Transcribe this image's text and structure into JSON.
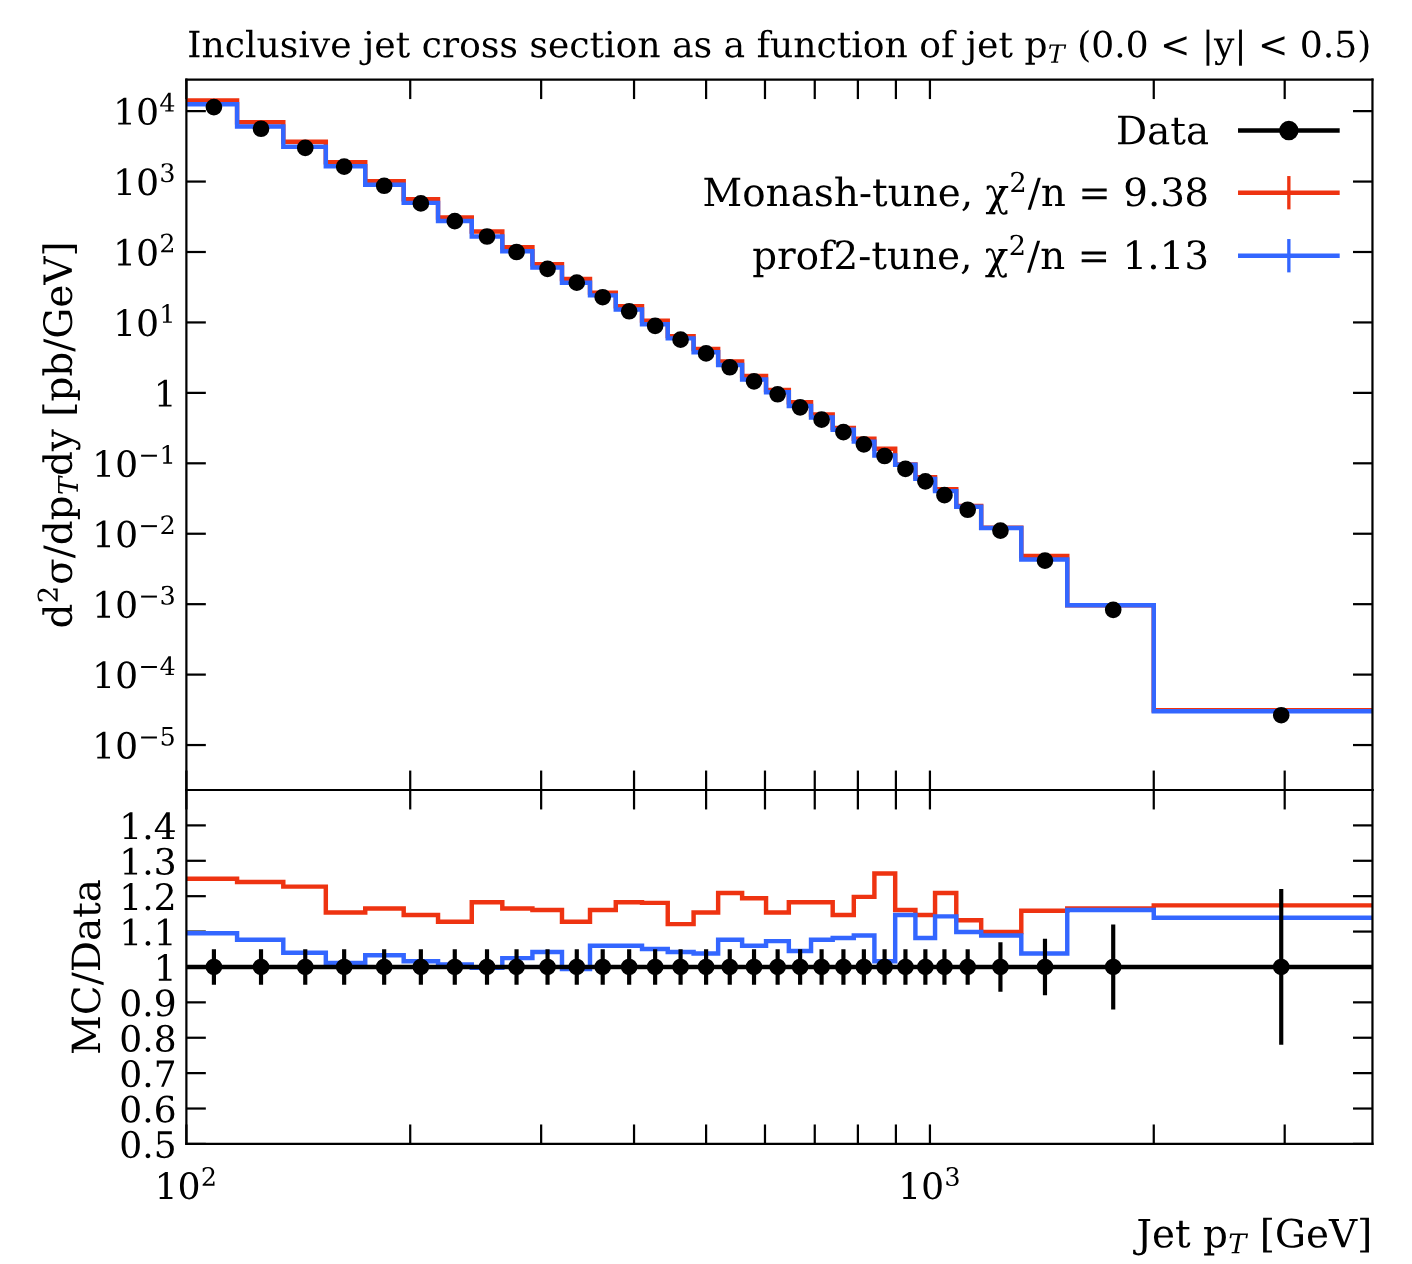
{
  "chart_data": [
    {
      "type": "histogram",
      "title": "Inclusive jet cross section as a function of jet p$_{T}$ (0.0 < |y| < 0.5)",
      "ylabel": "d$^{2}$σ/dp$_{T}$dy [pb/GeV]",
      "log": "xy",
      "tick_labels": "y",
      "legend": "top right",
      "bins": [
        100,
        117,
        135,
        154,
        174,
        196,
        218,
        242,
        266,
        292,
        320,
        349,
        378,
        410,
        444,
        481,
        519,
        559,
        602,
        646,
        692,
        740,
        790,
        842,
        898,
        956,
        1016,
        1085,
        1172,
        1327,
        1530,
        2000,
        3937
      ],
      "xlim": [
        100,
        3937
      ],
      "xticks": [
        {
          "value": 100,
          "label": null
        },
        {
          "value": 200,
          "label": null
        },
        {
          "value": 300,
          "label": null
        },
        {
          "value": 400,
          "label": null
        },
        {
          "value": 500,
          "label": null
        },
        {
          "value": 600,
          "label": null
        },
        {
          "value": 700,
          "label": null
        },
        {
          "value": 800,
          "label": null
        },
        {
          "value": 900,
          "label": null
        },
        {
          "value": 1000,
          "label": null
        },
        {
          "value": 2000,
          "label": null
        },
        {
          "value": 3000,
          "label": null
        }
      ],
      "ylim": [
        2.3e-06,
        28000
      ],
      "yticks": [
        {
          "value": 1e-05,
          "label": "10$^{−5}$"
        },
        {
          "value": 0.0001,
          "label": "10$^{−4}$"
        },
        {
          "value": 0.001,
          "label": "10$^{−3}$"
        },
        {
          "value": 0.01,
          "label": "10$^{−2}$"
        },
        {
          "value": 0.1,
          "label": "10$^{−1}$"
        },
        1,
        {
          "value": 10,
          "label": "10$^{1}$"
        },
        {
          "value": 100,
          "label": "10$^{2}$"
        },
        {
          "value": 1000,
          "label": "10$^{3}$"
        },
        {
          "value": 10000,
          "label": "10$^{4}$"
        }
      ],
      "series": [
        {
          "name": "Data",
          "type": "scatter",
          "marker": "circle",
          "color": "#000000",
          "x": [
            108.9,
            126,
            144.5,
            163,
            184.5,
            206.7,
            229.6,
            253.7,
            278,
            306,
            335,
            363,
            394,
            427,
            462,
            500,
            538,
            580,
            624,
            669,
            715,
            765,
            815,
            869,
            927,
            986,
            1046,
            1124,
            1244,
            1428,
            1764,
            2968
          ],
          "values": [
            11400,
            5620,
            3000,
            1630,
            871,
            490,
            274,
            166,
            100,
            57.7,
            36.7,
            22.8,
            14.4,
            8.95,
            5.7,
            3.63,
            2.31,
            1.46,
            0.955,
            0.624,
            0.416,
            0.277,
            0.186,
            0.127,
            0.0832,
            0.0555,
            0.0353,
            0.0219,
            0.0111,
            0.00416,
            0.00083,
            2.65e-05
          ]
        },
        {
          "name": "Monash-tune, χ$^{2}$/n = 9.38",
          "color": "#ee3311",
          "values": [
            14200,
            6970,
            3680,
            1880,
            1015,
            562,
            309,
            196,
            116.5,
            67.0,
            41.4,
            26.5,
            17.0,
            10.6,
            6.39,
            4.19,
            2.79,
            1.74,
            1.1,
            0.738,
            0.492,
            0.318,
            0.223,
            0.161,
            0.0966,
            0.0637,
            0.0427,
            0.0248,
            0.0122,
            0.00482,
            0.000967,
            3.11e-05
          ]
        },
        {
          "name": "prof2-tune, χ$^{2}$/n = 1.13",
          "color": "#3366ff",
          "values": [
            12500,
            6050,
            3120,
            1650,
            900,
            498,
            276,
            166,
            102.5,
            60.1,
            36.5,
            24.2,
            15.3,
            9.41,
            5.94,
            3.77,
            2.49,
            1.55,
            1.02,
            0.652,
            0.448,
            0.3,
            0.203,
            0.129,
            0.0954,
            0.0601,
            0.0403,
            0.0241,
            0.0121,
            0.00432,
            0.000964,
            3.02e-05
          ]
        }
      ]
    },
    {
      "type": "histogram",
      "xlabel": "Jet p$_{T}$ [GeV]",
      "ylabel": "MC/Data",
      "log": "x",
      "bins": [
        100,
        117,
        135,
        154,
        174,
        196,
        218,
        242,
        266,
        292,
        320,
        349,
        378,
        410,
        444,
        481,
        519,
        559,
        602,
        646,
        692,
        740,
        790,
        842,
        898,
        956,
        1016,
        1085,
        1172,
        1327,
        1530,
        2000,
        3937
      ],
      "xlim": [
        100,
        3937
      ],
      "xticks": [
        {
          "value": 100,
          "label": "10$^{2}$"
        },
        {
          "value": 200,
          "label": null
        },
        {
          "value": 300,
          "label": null
        },
        {
          "value": 400,
          "label": null
        },
        {
          "value": 500,
          "label": null
        },
        {
          "value": 600,
          "label": null
        },
        {
          "value": 700,
          "label": null
        },
        {
          "value": 800,
          "label": null
        },
        {
          "value": 900,
          "label": null
        },
        {
          "value": 1000,
          "label": "10$^{3}$"
        },
        {
          "value": 2000,
          "label": null
        },
        {
          "value": 3000,
          "label": null
        }
      ],
      "ylim": [
        0.5,
        1.5
      ],
      "yticks": [
        0.5,
        0.6,
        0.7,
        0.8,
        0.9,
        1,
        1.1,
        1.2,
        1.3,
        1.4
      ],
      "ref_lines": [
        {
          "axis": "y",
          "value": 1,
          "color": "#000000"
        }
      ],
      "series": [
        {
          "type": "scatter",
          "marker": "circle",
          "color": "#000000",
          "x": [
            108.9,
            126,
            144.5,
            163,
            184.5,
            206.7,
            229.6,
            253.7,
            278,
            306,
            335,
            363,
            394,
            427,
            462,
            500,
            538,
            580,
            624,
            669,
            715,
            765,
            815,
            869,
            927,
            986,
            1046,
            1124,
            1244,
            1428,
            1764,
            2968
          ],
          "values": [
            1,
            1,
            1,
            1,
            1,
            1,
            1,
            1,
            1,
            1,
            1,
            1,
            1,
            1,
            1,
            1,
            1,
            1,
            1,
            1,
            1,
            1,
            1,
            1,
            1,
            1,
            1,
            1,
            1,
            1,
            1,
            1
          ],
          "errors": [
            0.05,
            0.05,
            0.05,
            0.05,
            0.05,
            0.05,
            0.05,
            0.05,
            0.05,
            0.05,
            0.05,
            0.05,
            0.05,
            0.05,
            0.05,
            0.05,
            0.05,
            0.05,
            0.05,
            0.05,
            0.05,
            0.05,
            0.05,
            0.05,
            0.05,
            0.05,
            0.05,
            0.05,
            0.07,
            0.08,
            0.12,
            0.22
          ]
        },
        {
          "color": "#ee3311",
          "values": [
            1.249,
            1.24,
            1.227,
            1.154,
            1.165,
            1.147,
            1.128,
            1.183,
            1.165,
            1.161,
            1.128,
            1.161,
            1.183,
            1.181,
            1.121,
            1.154,
            1.209,
            1.194,
            1.154,
            1.183,
            1.183,
            1.147,
            1.198,
            1.264,
            1.161,
            1.147,
            1.209,
            1.132,
            1.099,
            1.159,
            1.165,
            1.174
          ]
        },
        {
          "color": "#3366ff",
          "values": [
            1.095,
            1.077,
            1.04,
            1.011,
            1.033,
            1.016,
            1.007,
            0.998,
            1.025,
            1.042,
            0.994,
            1.06,
            1.06,
            1.051,
            1.042,
            1.038,
            1.077,
            1.06,
            1.073,
            1.045,
            1.077,
            1.082,
            1.089,
            1.016,
            1.147,
            1.082,
            1.143,
            1.099,
            1.089,
            1.038,
            1.161,
            1.139
          ]
        }
      ]
    }
  ]
}
